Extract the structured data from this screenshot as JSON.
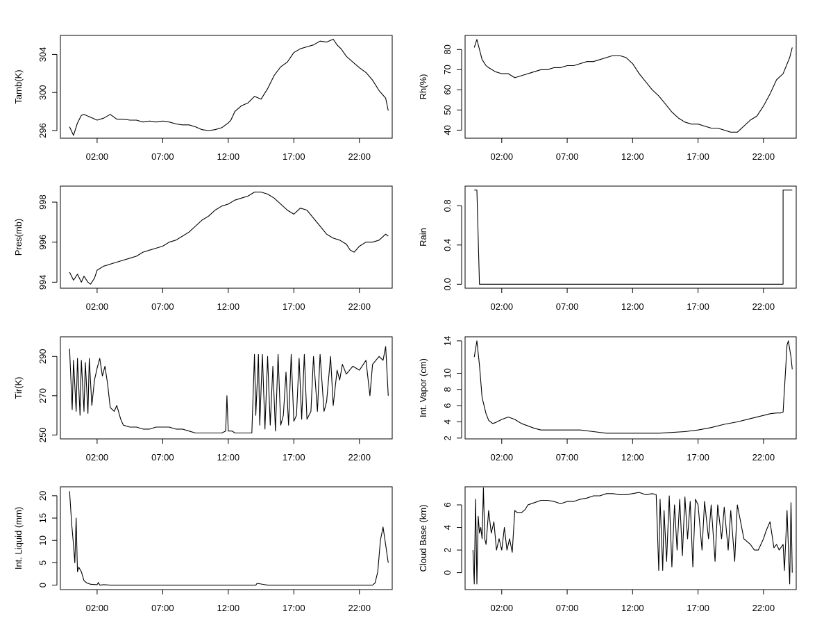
{
  "chart_data": [
    {
      "type": "line",
      "ylabel": "Tamb(K)",
      "x_ticks": [
        "02:00",
        "07:00",
        "12:00",
        "17:00",
        "22:00"
      ],
      "y_ticks": [
        296,
        300,
        304
      ],
      "xlim": [
        -0.8,
        24.5
      ],
      "ylim": [
        295.2,
        306
      ],
      "series": [
        {
          "x": [
            -0.1,
            0.2,
            0.5,
            0.8,
            1,
            1.5,
            2,
            2.5,
            3,
            3.5,
            4,
            4.5,
            5,
            5.5,
            6,
            6.5,
            7,
            7.5,
            8,
            8.5,
            9,
            9.5,
            10,
            10.5,
            11,
            11.5,
            12,
            12.2,
            12.5,
            13,
            13.5,
            14,
            14.5,
            15,
            15.5,
            16,
            16.5,
            17,
            17.5,
            18,
            18.5,
            19,
            19.5,
            20,
            20.3,
            20.6,
            21,
            21.5,
            22,
            22.5,
            23,
            23.5,
            24,
            24.2
          ],
          "y": [
            296.4,
            295.5,
            296.8,
            297.6,
            297.7,
            297.4,
            297.1,
            297.3,
            297.7,
            297.2,
            297.2,
            297.1,
            297.1,
            296.9,
            297.0,
            296.9,
            297.0,
            296.9,
            296.7,
            296.6,
            296.6,
            296.4,
            296.1,
            296.0,
            296.1,
            296.3,
            296.8,
            297.1,
            298.0,
            298.6,
            298.9,
            299.6,
            299.3,
            300.4,
            301.8,
            302.7,
            303.2,
            304.2,
            304.6,
            304.8,
            305.0,
            305.4,
            305.3,
            305.6,
            305.0,
            304.6,
            303.8,
            303.2,
            302.6,
            302.1,
            301.3,
            300.2,
            299.4,
            298.1
          ]
        }
      ]
    },
    {
      "type": "line",
      "ylabel": "Rh(%)",
      "x_ticks": [
        "02:00",
        "07:00",
        "12:00",
        "17:00",
        "22:00"
      ],
      "y_ticks": [
        40,
        50,
        60,
        70,
        80
      ],
      "xlim": [
        -0.8,
        24.5
      ],
      "ylim": [
        36,
        87
      ],
      "series": [
        {
          "x": [
            -0.1,
            0.1,
            0.3,
            0.5,
            0.8,
            1,
            1.5,
            2,
            2.5,
            3,
            3.5,
            4,
            4.5,
            5,
            5.5,
            6,
            6.5,
            7,
            7.5,
            8,
            8.5,
            9,
            9.5,
            10,
            10.5,
            11,
            11.5,
            12,
            12.5,
            13,
            13.5,
            14,
            14.5,
            15,
            15.5,
            16,
            16.5,
            17,
            17.5,
            18,
            18.5,
            19,
            19.5,
            20,
            20.5,
            21,
            21.5,
            22,
            22.5,
            23,
            23.5,
            24,
            24.2
          ],
          "y": [
            81,
            85,
            80,
            75,
            72,
            71,
            69,
            68,
            68,
            66,
            67,
            68,
            69,
            70,
            70,
            71,
            71,
            72,
            72,
            73,
            74,
            74,
            75,
            76,
            77,
            77,
            76,
            73,
            68,
            64,
            60,
            57,
            53,
            49,
            46,
            44,
            43,
            43,
            42,
            41,
            41,
            40,
            39,
            39,
            42,
            45,
            47,
            52,
            58,
            65,
            68,
            76,
            81
          ]
        }
      ]
    },
    {
      "type": "line",
      "ylabel": "Pres(mb)",
      "x_ticks": [
        "02:00",
        "07:00",
        "12:00",
        "17:00",
        "22:00"
      ],
      "y_ticks": [
        994,
        996,
        998
      ],
      "xlim": [
        -0.8,
        24.5
      ],
      "ylim": [
        993.7,
        998.8
      ],
      "series": [
        {
          "x": [
            -0.1,
            0.2,
            0.5,
            0.8,
            1,
            1.3,
            1.5,
            1.8,
            2,
            2.5,
            3,
            3.5,
            4,
            4.5,
            5,
            5.5,
            6,
            6.5,
            7,
            7.5,
            8,
            8.5,
            9,
            9.5,
            10,
            10.5,
            11,
            11.5,
            12,
            12.5,
            13,
            13.5,
            14,
            14.5,
            15,
            15.5,
            16,
            16.5,
            17,
            17.5,
            18,
            18.5,
            19,
            19.5,
            20,
            20.5,
            21,
            21.3,
            21.6,
            22,
            22.5,
            23,
            23.5,
            24,
            24.2
          ],
          "y": [
            994.5,
            994.1,
            994.4,
            994.0,
            994.3,
            994.0,
            993.9,
            994.2,
            994.6,
            994.8,
            994.9,
            995.0,
            995.1,
            995.2,
            995.3,
            995.5,
            995.6,
            995.7,
            995.8,
            996.0,
            996.1,
            996.3,
            996.5,
            996.8,
            997.1,
            997.3,
            997.6,
            997.8,
            997.9,
            998.1,
            998.2,
            998.3,
            998.5,
            998.5,
            998.4,
            998.2,
            997.9,
            997.6,
            997.4,
            997.7,
            997.6,
            997.2,
            996.8,
            996.4,
            996.2,
            996.1,
            995.9,
            995.6,
            995.5,
            995.8,
            996.0,
            996.0,
            996.1,
            996.4,
            996.3
          ]
        }
      ]
    },
    {
      "type": "line",
      "ylabel": "Rain",
      "x_ticks": [
        "02:00",
        "07:00",
        "12:00",
        "17:00",
        "22:00"
      ],
      "y_ticks": [
        "0.0",
        "0.4",
        "0.8"
      ],
      "xlim": [
        -0.8,
        24.5
      ],
      "ylim": [
        -0.04,
        1.0
      ],
      "series": [
        {
          "x": [
            -0.1,
            0.1,
            0.3,
            23.5,
            23.5,
            24.2
          ],
          "y": [
            0.96,
            0.96,
            0,
            0,
            0.96,
            0.96
          ]
        }
      ]
    },
    {
      "type": "line",
      "ylabel": "Tir(K)",
      "x_ticks": [
        "02:00",
        "07:00",
        "12:00",
        "17:00",
        "22:00"
      ],
      "y_ticks": [
        250,
        270,
        290
      ],
      "xlim": [
        -0.8,
        24.5
      ],
      "ylim": [
        248,
        300
      ],
      "series": [
        {
          "x": [
            -0.1,
            0.1,
            0.2,
            0.4,
            0.5,
            0.7,
            0.8,
            1.0,
            1.1,
            1.3,
            1.4,
            1.6,
            1.8,
            2.0,
            2.2,
            2.4,
            2.6,
            2.8,
            3.0,
            3.3,
            3.5,
            3.8,
            4.0,
            4.5,
            5,
            5.5,
            6,
            6.5,
            7,
            7.5,
            8,
            8.5,
            9,
            9.5,
            10,
            10.5,
            11,
            11.5,
            11.8,
            11.9,
            12.0,
            12.3,
            12.5,
            13,
            13.5,
            13.8,
            14.0,
            14.1,
            14.3,
            14.4,
            14.6,
            14.8,
            15.0,
            15.2,
            15.4,
            15.6,
            15.8,
            16.0,
            16.2,
            16.4,
            16.6,
            16.8,
            17.0,
            17.2,
            17.4,
            17.6,
            17.8,
            18.0,
            18.3,
            18.5,
            18.8,
            19.0,
            19.3,
            19.5,
            19.8,
            20.0,
            20.3,
            20.5,
            20.7,
            21.0,
            21.5,
            22.0,
            22.5,
            22.8,
            23.0,
            23.5,
            23.8,
            24.0,
            24.2
          ],
          "y": [
            294,
            263,
            288,
            262,
            289,
            260,
            288,
            262,
            287,
            261,
            289,
            265,
            278,
            284,
            289,
            280,
            285,
            276,
            264,
            262,
            265,
            258,
            255,
            254,
            254,
            253,
            253,
            254,
            254,
            254,
            253,
            253,
            252,
            251,
            251,
            251,
            251,
            251,
            252,
            270,
            252,
            252,
            251,
            251,
            251,
            251,
            291,
            260,
            291,
            255,
            291,
            253,
            290,
            255,
            285,
            252,
            291,
            255,
            260,
            282,
            255,
            291,
            257,
            260,
            289,
            258,
            291,
            258,
            262,
            290,
            262,
            291,
            262,
            267,
            290,
            265,
            283,
            278,
            286,
            281,
            285,
            283,
            288,
            270,
            286,
            290,
            288,
            295,
            270
          ]
        }
      ]
    },
    {
      "type": "line",
      "ylabel": "Int. Vapor (cm)",
      "x_ticks": [
        "02:00",
        "07:00",
        "12:00",
        "17:00",
        "22:00"
      ],
      "y_ticks": [
        2,
        4,
        6,
        8,
        10,
        14
      ],
      "xlim": [
        -0.8,
        24.5
      ],
      "ylim": [
        1.9,
        14.5
      ],
      "series": [
        {
          "x": [
            -0.1,
            0.1,
            0.3,
            0.5,
            0.8,
            1.0,
            1.3,
            1.5,
            2.0,
            2.5,
            3.0,
            3.5,
            4.0,
            4.5,
            5,
            6,
            7,
            8,
            9,
            10,
            11,
            12,
            13,
            14,
            15,
            16,
            17,
            18,
            19,
            20,
            21,
            22,
            22.5,
            23,
            23.3,
            23.5,
            23.8,
            23.9,
            24.1,
            24.2
          ],
          "y": [
            12,
            14,
            11,
            7,
            5,
            4.2,
            3.8,
            3.9,
            4.3,
            4.6,
            4.3,
            3.8,
            3.5,
            3.2,
            3.0,
            3.0,
            3.0,
            3.0,
            2.8,
            2.6,
            2.6,
            2.6,
            2.6,
            2.6,
            2.7,
            2.8,
            3.0,
            3.3,
            3.7,
            4.0,
            4.4,
            4.8,
            5.0,
            5.1,
            5.1,
            5.2,
            13.5,
            14,
            12,
            10.5
          ]
        }
      ]
    },
    {
      "type": "line",
      "ylabel": "Int. Liquid (mm)",
      "x_ticks": [
        "02:00",
        "07:00",
        "12:00",
        "17:00",
        "22:00"
      ],
      "y_ticks": [
        0,
        5,
        10,
        15,
        20
      ],
      "xlim": [
        -0.8,
        24.5
      ],
      "ylim": [
        -1,
        22
      ],
      "series": [
        {
          "x": [
            -0.1,
            0.05,
            0.2,
            0.3,
            0.4,
            0.5,
            0.6,
            0.8,
            1.0,
            1.2,
            1.5,
            2.0,
            2.1,
            2.2,
            2.5,
            3,
            5,
            10,
            14.1,
            14.2,
            15,
            18,
            22.5,
            23.0,
            23.2,
            23.4,
            23.6,
            23.8,
            24.0,
            24.2
          ],
          "y": [
            21,
            14,
            9,
            5,
            15,
            3,
            4,
            3,
            1,
            0.5,
            0.2,
            0.1,
            0.6,
            0,
            0.1,
            0,
            0,
            0,
            0,
            0.4,
            0,
            0,
            0,
            0,
            0.5,
            3,
            10,
            13,
            9,
            5
          ]
        }
      ]
    },
    {
      "type": "line",
      "ylabel": "Cloud Base (km)",
      "x_ticks": [
        "02:00",
        "07:00",
        "12:00",
        "17:00",
        "22:00"
      ],
      "y_ticks": [
        0,
        2,
        4,
        6
      ],
      "xlim": [
        -0.8,
        24.5
      ],
      "ylim": [
        -1.5,
        7.6
      ],
      "series": [
        {
          "x": [
            -0.2,
            -0.1,
            0,
            0.1,
            0.2,
            0.3,
            0.4,
            0.5,
            0.6,
            0.7,
            0.8,
            1.0,
            1.2,
            1.4,
            1.6,
            1.8,
            2.0,
            2.2,
            2.4,
            2.6,
            2.8,
            3.0,
            3.2,
            3.5,
            3.8,
            4.0,
            4.5,
            5,
            5.5,
            6,
            6.5,
            7,
            7.5,
            8,
            8.5,
            9,
            9.5,
            10,
            10.5,
            11,
            11.5,
            12,
            12.5,
            13,
            13.5,
            13.8,
            14.0,
            14.1,
            14.3,
            14.4,
            14.6,
            14.8,
            15.0,
            15.2,
            15.4,
            15.6,
            15.8,
            16.0,
            16.2,
            16.4,
            16.6,
            16.8,
            17.0,
            17.3,
            17.5,
            17.8,
            18.0,
            18.3,
            18.5,
            18.8,
            19.0,
            19.3,
            19.5,
            19.8,
            20.0,
            20.5,
            21,
            21.3,
            21.6,
            22,
            22.2,
            22.5,
            22.8,
            23,
            23.2,
            23.5,
            23.6,
            23.8,
            24.0,
            24.1,
            24.2
          ],
          "y": [
            2,
            -1,
            6.5,
            -1,
            5,
            3.5,
            4,
            3,
            7.5,
            3,
            2.5,
            5.5,
            3.5,
            4.5,
            2,
            3,
            2,
            4,
            2,
            3,
            1.8,
            5.5,
            5.3,
            5.3,
            5.6,
            6.0,
            6.2,
            6.4,
            6.4,
            6.3,
            6.1,
            6.3,
            6.3,
            6.5,
            6.6,
            6.8,
            6.8,
            7.0,
            7.0,
            6.9,
            6.9,
            7.0,
            7.1,
            6.9,
            7.0,
            6.9,
            0.2,
            6.5,
            0.2,
            5.5,
            1,
            6.8,
            0.5,
            6,
            2,
            6.5,
            1.5,
            6.7,
            3,
            6.3,
            0.5,
            6.5,
            6,
            2,
            6.3,
            3,
            6,
            1,
            6,
            3,
            5.8,
            2,
            5.5,
            1,
            6,
            3,
            2.5,
            2,
            2,
            3,
            3.7,
            4.5,
            2.2,
            2.5,
            2,
            2.5,
            0.2,
            5.5,
            -1,
            6.2,
            0
          ]
        }
      ]
    }
  ]
}
